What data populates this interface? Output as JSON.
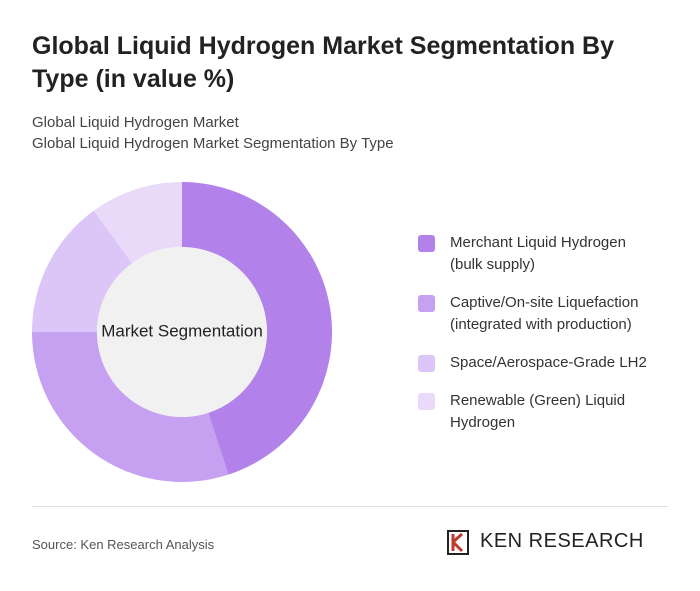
{
  "chart_data": {
    "type": "pie",
    "title": "Global Liquid Hydrogen Market Segmentation By Type (in value %)",
    "subtitle": [
      "Global Liquid Hydrogen Market",
      "Global Liquid Hydrogen Market Segmentation By Type"
    ],
    "center_label": "Market Segmentation",
    "categories": [
      "Merchant Liquid Hydrogen (bulk supply)",
      "Captive/On-site Liquefaction (integrated with production)",
      "Space/Aerospace-Grade LH2",
      "Renewable (Green) Liquid Hydrogen"
    ],
    "values": [
      45,
      30,
      15,
      10
    ],
    "colors": [
      "#b281ea",
      "#c6a0f1",
      "#dcc5f7",
      "#e9dafa"
    ],
    "source": "Source: Ken Research Analysis",
    "brand": "KEN RESEARCH"
  }
}
